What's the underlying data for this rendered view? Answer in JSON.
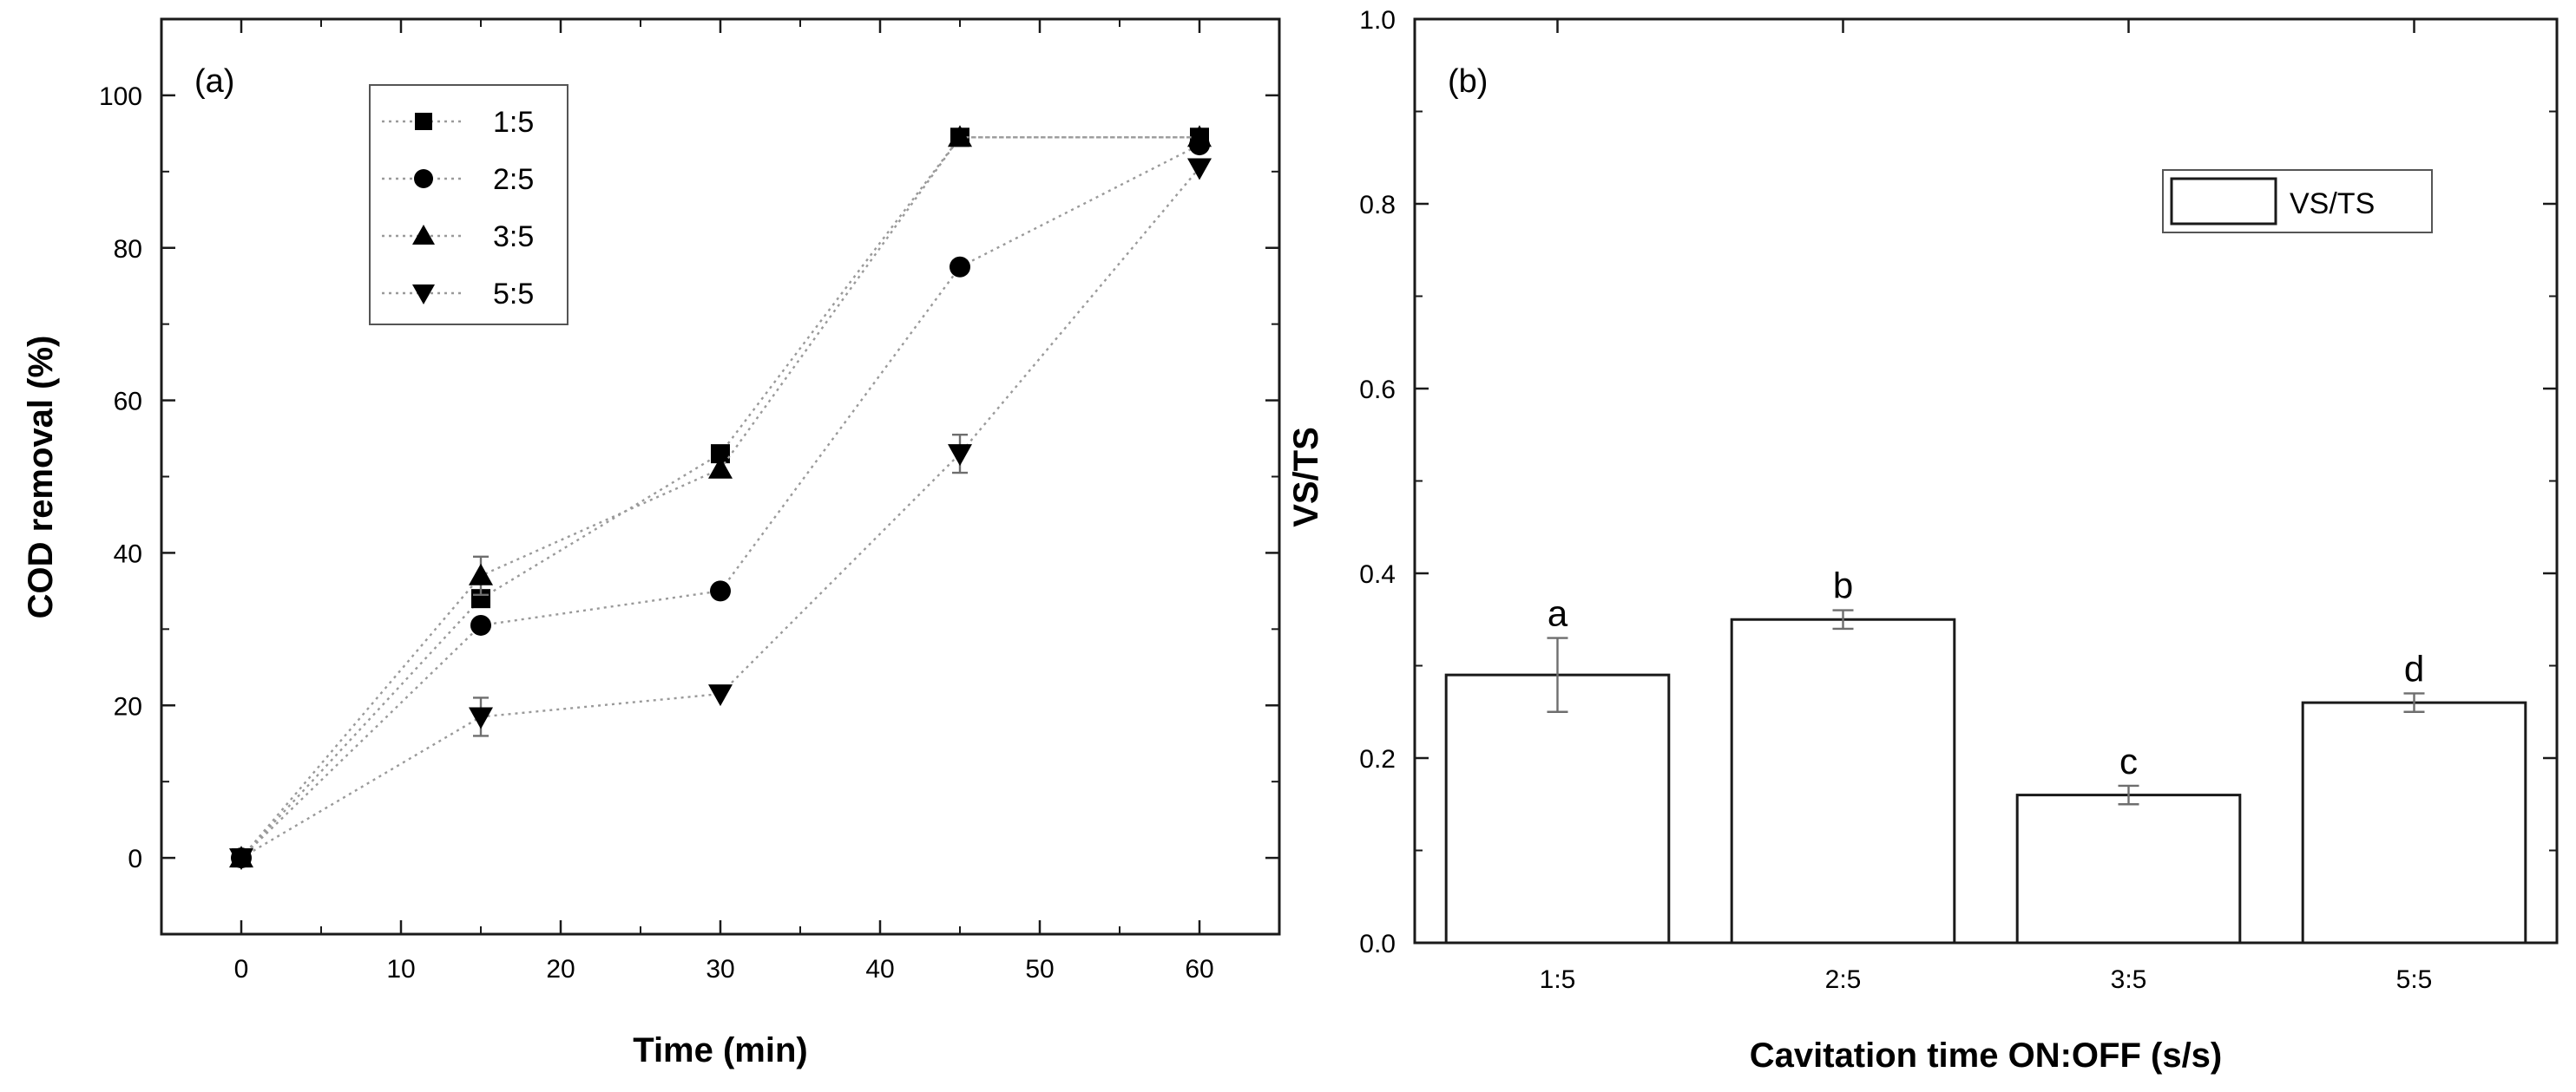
{
  "chart_data": [
    {
      "type": "line",
      "panel_label": "(a)",
      "title": "",
      "xlabel": "Time (min)",
      "ylabel": "COD removal (%)",
      "xlim": [
        -5,
        65
      ],
      "ylim": [
        -10,
        110
      ],
      "xticks": [
        0,
        10,
        20,
        30,
        40,
        50,
        60
      ],
      "yticks": [
        0,
        20,
        40,
        60,
        80,
        100
      ],
      "grid": false,
      "legend_position": "top-left",
      "x": [
        0,
        15,
        30,
        45,
        60
      ],
      "series": [
        {
          "name": "1:5",
          "marker": "square",
          "values": [
            0,
            34,
            53,
            94.5,
            94.5
          ],
          "errors": [
            0,
            0,
            0,
            0,
            0
          ]
        },
        {
          "name": "2:5",
          "marker": "circle",
          "values": [
            0,
            30.5,
            35,
            77.5,
            93.5
          ],
          "errors": [
            0,
            0,
            0,
            0,
            0
          ]
        },
        {
          "name": "3:5",
          "marker": "triangle-up",
          "values": [
            0,
            37,
            51,
            94.5,
            94.5
          ],
          "errors": [
            0,
            2.5,
            0,
            0,
            0
          ]
        },
        {
          "name": "5:5",
          "marker": "triangle-down",
          "values": [
            0,
            18.5,
            21.5,
            53,
            90.5
          ],
          "errors": [
            0,
            2.5,
            0,
            2.5,
            0
          ]
        }
      ]
    },
    {
      "type": "bar",
      "panel_label": "(b)",
      "title": "",
      "xlabel": "Cavitation time ON:OFF (s/s)",
      "ylabel": "VS/TS",
      "ylim": [
        0,
        1.0
      ],
      "yticks": [
        "0.0",
        "0.2",
        "0.4",
        "0.6",
        "0.8",
        "1.0"
      ],
      "grid": false,
      "legend": [
        "VS/TS"
      ],
      "legend_position": "top-right",
      "categories": [
        "1:5",
        "2:5",
        "3:5",
        "5:5"
      ],
      "values": [
        0.29,
        0.35,
        0.16,
        0.26
      ],
      "errors": [
        0.04,
        0.01,
        0.01,
        0.01
      ],
      "significance_labels": [
        "a",
        "b",
        "c",
        "d"
      ]
    }
  ]
}
